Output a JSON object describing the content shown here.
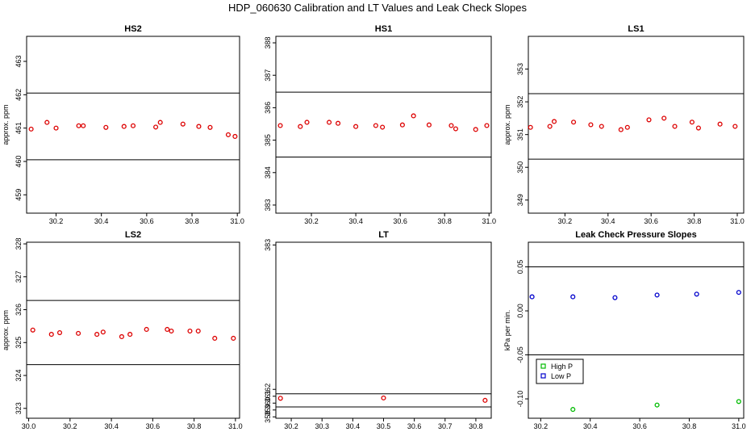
{
  "title": "HDP_060630  Calibration and LT Values and Leak Check Slopes",
  "chart_data": [
    {
      "type": "scatter",
      "title": "HS2",
      "ylabel": "approx. ppm",
      "xlim": [
        30.07,
        31.01
      ],
      "ylim": [
        458.45,
        463.75
      ],
      "xticks": [
        30.2,
        30.4,
        30.6,
        30.8,
        31.0
      ],
      "xtick_labels": [
        "30.2",
        "30.4",
        "30.6",
        "30.8",
        "31.0"
      ],
      "yticks": [
        459,
        460,
        461,
        462,
        463
      ],
      "ytick_labels": [
        "459",
        "460",
        "461",
        "462",
        "463"
      ],
      "hlines": [
        462.05,
        460.05
      ],
      "series": [
        {
          "color": "#dd0000",
          "x": [
            30.09,
            30.16,
            30.2,
            30.3,
            30.32,
            30.42,
            30.5,
            30.54,
            30.64,
            30.66,
            30.76,
            30.83,
            30.88,
            30.96,
            30.99
          ],
          "y": [
            460.97,
            461.17,
            461.0,
            461.07,
            461.07,
            461.02,
            461.05,
            461.07,
            461.03,
            461.17,
            461.12,
            461.05,
            461.02,
            460.8,
            460.75
          ]
        }
      ]
    },
    {
      "type": "scatter",
      "title": "HS1",
      "ylabel": "",
      "xlim": [
        30.04,
        31.01
      ],
      "ylim": [
        382.75,
        388.2
      ],
      "xticks": [
        30.2,
        30.4,
        30.6,
        30.8,
        31.0
      ],
      "xtick_labels": [
        "30.2",
        "30.4",
        "30.6",
        "30.8",
        "31.0"
      ],
      "yticks": [
        383,
        384,
        385,
        386,
        387,
        388
      ],
      "ytick_labels": [
        "383",
        "384",
        "385",
        "386",
        "387",
        "388"
      ],
      "hlines": [
        386.48,
        384.48
      ],
      "series": [
        {
          "color": "#dd0000",
          "x": [
            30.06,
            30.15,
            30.18,
            30.28,
            30.32,
            30.4,
            30.49,
            30.52,
            30.61,
            30.66,
            30.73,
            30.83,
            30.85,
            30.94,
            30.99
          ],
          "y": [
            385.45,
            385.42,
            385.55,
            385.55,
            385.52,
            385.42,
            385.45,
            385.4,
            385.47,
            385.75,
            385.47,
            385.45,
            385.35,
            385.33,
            385.45
          ]
        }
      ]
    },
    {
      "type": "scatter",
      "title": "LS1",
      "ylabel": "approx. ppm",
      "xlim": [
        30.03,
        31.03
      ],
      "ylim": [
        348.6,
        354.0
      ],
      "xticks": [
        30.2,
        30.4,
        30.6,
        30.8,
        31.0
      ],
      "xtick_labels": [
        "30.2",
        "30.4",
        "30.6",
        "30.8",
        "31.0"
      ],
      "yticks": [
        349,
        350,
        351,
        352,
        353
      ],
      "ytick_labels": [
        "349",
        "350",
        "351",
        "352",
        "353"
      ],
      "hlines": [
        352.25,
        350.25
      ],
      "series": [
        {
          "color": "#dd0000",
          "x": [
            30.04,
            30.13,
            30.15,
            30.24,
            30.32,
            30.37,
            30.46,
            30.49,
            30.59,
            30.66,
            30.71,
            30.79,
            30.82,
            30.92,
            30.99
          ],
          "y": [
            351.22,
            351.25,
            351.4,
            351.38,
            351.3,
            351.25,
            351.15,
            351.22,
            351.45,
            351.5,
            351.25,
            351.38,
            351.2,
            351.32,
            351.25
          ]
        }
      ]
    },
    {
      "type": "scatter",
      "title": "LS2",
      "ylabel": "approx. ppm",
      "xlim": [
        29.99,
        31.02
      ],
      "ylim": [
        322.7,
        328.05
      ],
      "xticks": [
        30.0,
        30.2,
        30.4,
        30.6,
        30.8,
        31.0
      ],
      "xtick_labels": [
        "30.0",
        "30.2",
        "30.4",
        "30.6",
        "30.8",
        "31.0"
      ],
      "yticks": [
        323,
        324,
        325,
        326,
        327,
        328
      ],
      "ytick_labels": [
        "323",
        "324",
        "325",
        "326",
        "327",
        "328"
      ],
      "hlines": [
        326.28,
        324.33
      ],
      "series": [
        {
          "color": "#dd0000",
          "x": [
            30.02,
            30.11,
            30.15,
            30.24,
            30.33,
            30.36,
            30.45,
            30.49,
            30.57,
            30.67,
            30.69,
            30.78,
            30.82,
            30.9,
            30.99
          ],
          "y": [
            325.38,
            325.25,
            325.3,
            325.28,
            325.25,
            325.32,
            325.18,
            325.25,
            325.4,
            325.4,
            325.35,
            325.35,
            325.35,
            325.13,
            325.13
          ]
        }
      ]
    },
    {
      "type": "scatter",
      "title": "LT",
      "ylabel": "",
      "xlim": [
        30.15,
        30.85
      ],
      "ylim": [
        357.8,
        383.4
      ],
      "xticks": [
        30.2,
        30.3,
        30.4,
        30.5,
        30.6,
        30.7,
        30.8
      ],
      "xtick_labels": [
        "30.2",
        "30.3",
        "30.4",
        "30.5",
        "30.6",
        "30.7",
        "30.8"
      ],
      "yticks": [
        358,
        359,
        360,
        361,
        362,
        383
      ],
      "ytick_labels": [
        "358",
        "359",
        "360",
        "361",
        "362",
        "383"
      ],
      "hlines": [
        361.35,
        359.45
      ],
      "series": [
        {
          "color": "#dd0000",
          "x": [
            30.165,
            30.5,
            30.83
          ],
          "y": [
            360.7,
            360.75,
            360.4
          ]
        }
      ]
    },
    {
      "type": "scatter",
      "title": "Leak Check Pressure Slopes",
      "ylabel": "kPa per min.",
      "xlim": [
        30.15,
        31.02
      ],
      "ylim": [
        -0.122,
        0.078
      ],
      "xticks": [
        30.2,
        30.4,
        30.6,
        30.8,
        31.0
      ],
      "xtick_labels": [
        "30.2",
        "30.4",
        "30.6",
        "30.8",
        "31.0"
      ],
      "yticks": [
        -0.1,
        -0.05,
        0.0,
        0.05
      ],
      "ytick_labels": [
        "-0.10",
        "-0.05",
        "0.00",
        "0.05"
      ],
      "hlines": [
        0.05,
        -0.05
      ],
      "legend": {
        "position": "bottom-left",
        "entries": [
          {
            "label": "High P",
            "color": "#00bb00"
          },
          {
            "label": "Low P",
            "color": "#0000cc"
          }
        ]
      },
      "series": [
        {
          "name": "High P",
          "color": "#00bb00",
          "x": [
            30.33,
            30.67,
            31.0
          ],
          "y": [
            -0.112,
            -0.107,
            -0.103
          ]
        },
        {
          "name": "Low P",
          "color": "#0000cc",
          "x": [
            30.165,
            30.33,
            30.5,
            30.67,
            30.83,
            31.0
          ],
          "y": [
            0.016,
            0.016,
            0.015,
            0.018,
            0.019,
            0.021
          ]
        }
      ]
    }
  ]
}
